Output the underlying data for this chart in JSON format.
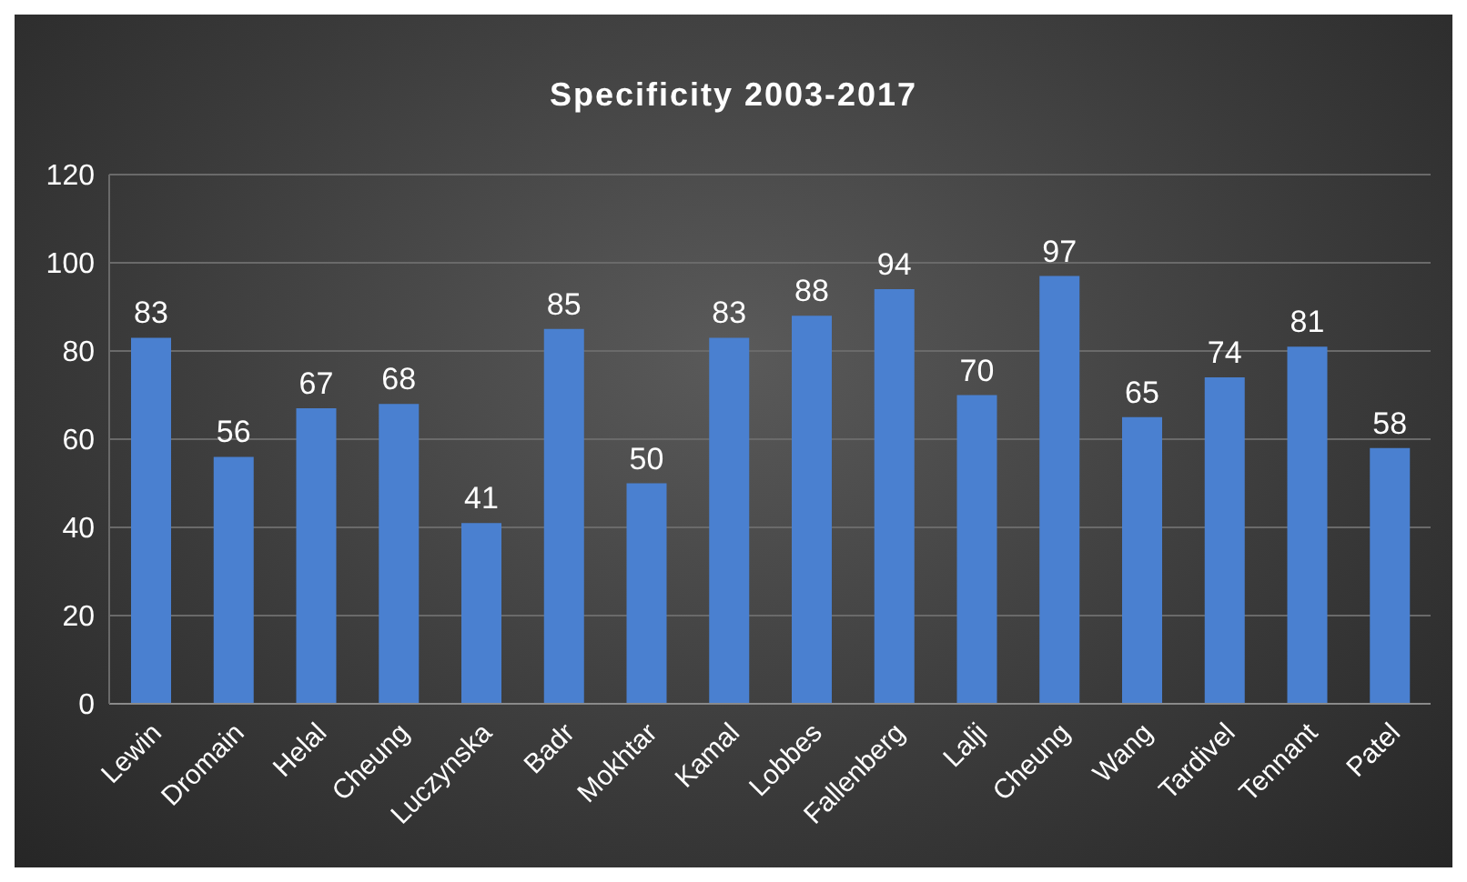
{
  "chart_data": {
    "type": "bar",
    "title": "Specificity 2003-2017",
    "categories": [
      "Lewin",
      "Dromain",
      "Helal",
      "Cheung",
      "Luczynska",
      "Badr",
      "Mokhtar",
      "Kamal",
      "Lobbes",
      "Fallenberg",
      "Lalji",
      "Cheung",
      "Wang",
      "Tardivel",
      "Tennant",
      "Patel"
    ],
    "values": [
      83,
      56,
      67,
      68,
      41,
      85,
      50,
      83,
      88,
      94,
      70,
      97,
      65,
      74,
      81,
      58
    ],
    "color": "#4a80d0",
    "ylim": [
      0,
      120
    ],
    "yticks": [
      0,
      20,
      40,
      60,
      80,
      100,
      120
    ],
    "grid": "y",
    "data_labels": true
  }
}
